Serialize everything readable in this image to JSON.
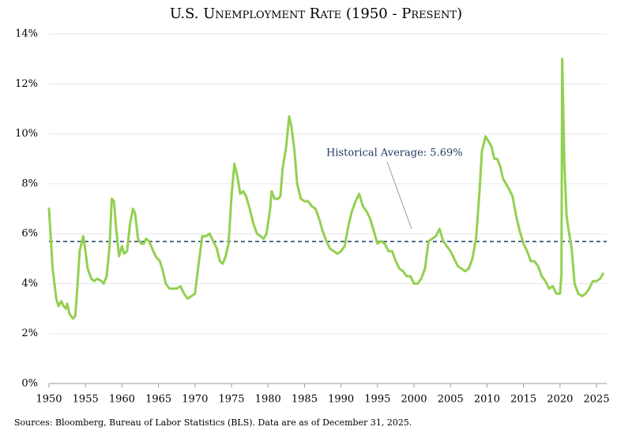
{
  "chart_data": {
    "type": "line",
    "title": "U.S. Unemployment Rate (1950 - Present)",
    "source": "Sources: Bloomberg, Bureau of Labor Statistics (BLS). Data are as of December 31, 2025.",
    "color": "#92d050",
    "grid": true,
    "xlim": [
      1950,
      2026.4
    ],
    "xticks": [
      1950,
      1955,
      1960,
      1965,
      1970,
      1975,
      1980,
      1985,
      1990,
      1995,
      2000,
      2005,
      2010,
      2015,
      2020,
      2025
    ],
    "ylim": [
      0,
      14
    ],
    "yticks": [
      {
        "value": 0,
        "label": "0%"
      },
      {
        "value": 2,
        "label": "2%"
      },
      {
        "value": 4,
        "label": "4%"
      },
      {
        "value": 6,
        "label": "6%"
      },
      {
        "value": 8,
        "label": "8%"
      },
      {
        "value": 10,
        "label": "10%"
      },
      {
        "value": 12,
        "label": "12%"
      },
      {
        "value": 14,
        "label": "14%"
      }
    ],
    "average": {
      "value": 5.69,
      "label": "Historical Average: 5.69%",
      "color": "#1f3864"
    },
    "x": [
      1950.0,
      1950.5,
      1951.0,
      1951.3,
      1951.7,
      1952.0,
      1952.3,
      1952.5,
      1952.8,
      1953.3,
      1953.6,
      1953.9,
      1954.2,
      1954.7,
      1955.0,
      1955.3,
      1955.8,
      1956.2,
      1956.6,
      1957.2,
      1957.5,
      1957.9,
      1958.3,
      1958.6,
      1958.9,
      1959.2,
      1959.6,
      1960.0,
      1960.3,
      1960.7,
      1961.1,
      1961.5,
      1961.8,
      1962.2,
      1962.6,
      1963.0,
      1963.3,
      1963.7,
      1964.0,
      1964.6,
      1965.2,
      1965.6,
      1966.0,
      1966.5,
      1967.0,
      1967.5,
      1968.0,
      1968.5,
      1969.0,
      1969.5,
      1970.0,
      1970.5,
      1971.0,
      1971.5,
      1972.0,
      1972.5,
      1973.0,
      1973.4,
      1973.8,
      1974.2,
      1974.6,
      1975.0,
      1975.4,
      1975.8,
      1976.2,
      1976.6,
      1977.0,
      1977.5,
      1978.0,
      1978.5,
      1979.0,
      1979.4,
      1979.8,
      1980.3,
      1980.5,
      1980.9,
      1981.4,
      1981.7,
      1982.0,
      1982.5,
      1982.9,
      1983.2,
      1983.6,
      1984.0,
      1984.5,
      1985.0,
      1985.5,
      1986.0,
      1986.5,
      1987.0,
      1987.5,
      1988.0,
      1988.5,
      1989.0,
      1989.5,
      1990.0,
      1990.5,
      1991.0,
      1991.5,
      1992.0,
      1992.5,
      1993.0,
      1993.5,
      1994.0,
      1994.5,
      1995.0,
      1995.5,
      1996.0,
      1996.5,
      1997.0,
      1997.5,
      1998.0,
      1998.5,
      1999.0,
      1999.5,
      2000.0,
      2000.5,
      2001.0,
      2001.5,
      2002.0,
      2002.5,
      2003.0,
      2003.5,
      2004.0,
      2004.5,
      2005.0,
      2005.5,
      2006.0,
      2006.5,
      2007.0,
      2007.5,
      2008.0,
      2008.5,
      2009.0,
      2009.3,
      2009.8,
      2010.2,
      2010.6,
      2011.0,
      2011.4,
      2011.8,
      2012.2,
      2012.6,
      2013.0,
      2013.5,
      2014.0,
      2014.5,
      2015.0,
      2015.5,
      2016.0,
      2016.5,
      2017.0,
      2017.5,
      2018.0,
      2018.5,
      2019.0,
      2019.5,
      2020.0,
      2020.2,
      2020.3,
      2020.6,
      2020.9,
      2021.2,
      2021.6,
      2022.0,
      2022.5,
      2023.0,
      2023.5,
      2024.0,
      2024.5,
      2025.0,
      2025.5,
      2025.9
    ],
    "values": [
      7.0,
      4.6,
      3.4,
      3.1,
      3.3,
      3.1,
      3.0,
      3.2,
      2.8,
      2.6,
      2.7,
      3.9,
      5.3,
      5.9,
      5.3,
      4.6,
      4.2,
      4.1,
      4.2,
      4.1,
      4.0,
      4.3,
      5.5,
      7.4,
      7.3,
      6.2,
      5.1,
      5.5,
      5.2,
      5.3,
      6.4,
      7.0,
      6.8,
      5.8,
      5.6,
      5.6,
      5.8,
      5.7,
      5.5,
      5.1,
      4.9,
      4.5,
      4.0,
      3.8,
      3.8,
      3.8,
      3.9,
      3.6,
      3.4,
      3.5,
      3.6,
      4.8,
      5.9,
      5.9,
      6.0,
      5.7,
      5.4,
      4.9,
      4.8,
      5.1,
      5.6,
      7.5,
      8.8,
      8.3,
      7.6,
      7.7,
      7.5,
      7.0,
      6.4,
      6.0,
      5.9,
      5.8,
      6.0,
      7.0,
      7.7,
      7.4,
      7.4,
      7.5,
      8.6,
      9.5,
      10.7,
      10.3,
      9.4,
      8.0,
      7.4,
      7.3,
      7.3,
      7.1,
      7.0,
      6.6,
      6.1,
      5.7,
      5.4,
      5.3,
      5.2,
      5.3,
      5.5,
      6.3,
      6.9,
      7.3,
      7.6,
      7.1,
      6.9,
      6.6,
      6.1,
      5.6,
      5.7,
      5.6,
      5.3,
      5.3,
      4.9,
      4.6,
      4.5,
      4.3,
      4.3,
      4.0,
      4.0,
      4.2,
      4.6,
      5.7,
      5.8,
      5.9,
      6.2,
      5.7,
      5.5,
      5.3,
      5.0,
      4.7,
      4.6,
      4.5,
      4.6,
      5.0,
      5.8,
      7.8,
      9.3,
      9.9,
      9.7,
      9.5,
      9.0,
      9.0,
      8.7,
      8.2,
      8.0,
      7.8,
      7.5,
      6.7,
      6.1,
      5.6,
      5.3,
      4.9,
      4.9,
      4.7,
      4.3,
      4.1,
      3.8,
      3.9,
      3.6,
      3.6,
      4.4,
      13.0,
      8.8,
      6.7,
      6.1,
      5.4,
      4.0,
      3.6,
      3.5,
      3.6,
      3.8,
      4.1,
      4.1,
      4.2,
      4.4
    ]
  }
}
